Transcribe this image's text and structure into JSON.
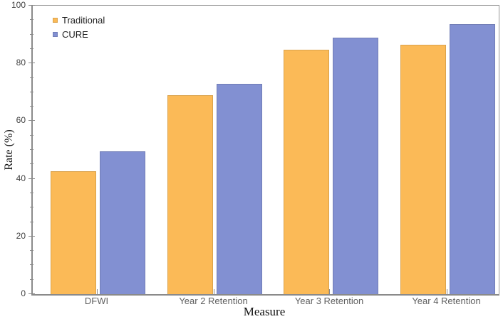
{
  "chart_data": {
    "type": "bar",
    "title": "",
    "categories": [
      "DFWI",
      "Year 2 Retention",
      "Year 3 Retention",
      "Year 4 Retention"
    ],
    "series": [
      {
        "name": "Traditional",
        "color": "#FBBA57",
        "values": [
          42.5,
          69,
          84.7,
          86.5
        ]
      },
      {
        "name": "CURE",
        "color": "#8290D2",
        "values": [
          49.5,
          73,
          89,
          93.7
        ]
      }
    ],
    "xlabel": "Measure",
    "ylabel": "Rate (%)",
    "ylim": [
      0,
      100
    ],
    "y_ticks": [
      0,
      20,
      40,
      60,
      80,
      100
    ],
    "y_minor_tick_step": 5,
    "legend_position": "top-left",
    "legend_items": [
      "Traditional",
      "CURE"
    ],
    "grid": false,
    "frame": true,
    "colors": {
      "traditional": "#FBBA57",
      "cure": "#8290D2",
      "axis": "#8A8A8A",
      "tick_text": "#424242",
      "category_text": "#606060"
    }
  }
}
